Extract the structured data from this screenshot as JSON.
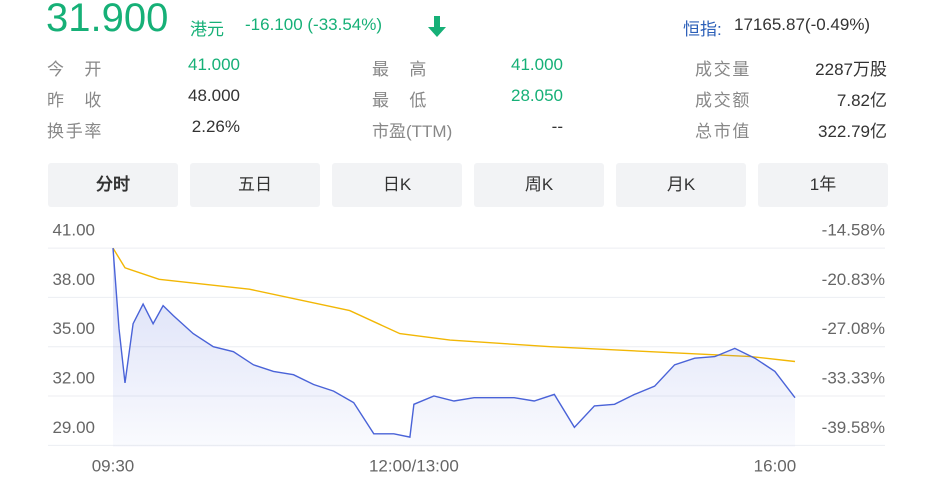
{
  "header": {
    "price": "31.900",
    "currency": "港元",
    "change": "-16.100 (-33.54%)",
    "index_label": "恒指:",
    "index_value": "17165.87(-0.49%)"
  },
  "stats": [
    [
      {
        "label": "今开",
        "value": "41.000"
      },
      {
        "label": "最高",
        "value": "41.000"
      },
      {
        "label": "成交量",
        "value": "2287万股"
      }
    ],
    [
      {
        "label": "昨收",
        "value": "48.000"
      },
      {
        "label": "最低",
        "value": "28.050"
      },
      {
        "label": "成交额",
        "value": "7.82亿"
      }
    ],
    [
      {
        "label": "换手率",
        "value": "2.26%"
      },
      {
        "label": "市盈(TTM)",
        "value": "--"
      },
      {
        "label": "总市值",
        "value": "322.79亿"
      }
    ]
  ],
  "tabs": [
    "分时",
    "五日",
    "日K",
    "周K",
    "月K",
    "1年"
  ],
  "chart_data": {
    "type": "line",
    "series": [
      {
        "color": "#4a63d8",
        "area": true,
        "x": [
          0,
          3,
          6,
          10,
          15,
          20,
          25,
          30,
          40,
          50,
          60,
          70,
          80,
          90,
          100,
          110,
          120,
          130,
          140,
          148,
          150,
          160,
          170,
          180,
          190,
          200,
          210,
          220,
          230,
          240,
          250,
          260,
          270,
          280,
          290,
          300,
          310,
          320,
          330,
          340
        ],
        "values": [
          41.0,
          36.1,
          32.8,
          36.4,
          37.6,
          36.4,
          37.5,
          36.9,
          35.8,
          35.0,
          34.7,
          33.9,
          33.5,
          33.3,
          32.7,
          32.3,
          31.6,
          29.7,
          29.7,
          29.5,
          31.5,
          32.0,
          31.7,
          31.9,
          31.9,
          31.9,
          31.7,
          32.1,
          30.1,
          31.4,
          31.5,
          32.1,
          32.6,
          33.9,
          34.3,
          34.4,
          34.9,
          34.3,
          33.5,
          31.9
        ]
      },
      {
        "color": "#f2b705",
        "area": false,
        "x": [
          0,
          6,
          23,
          68,
          118,
          143,
          168,
          218,
          268,
          318,
          340
        ],
        "values": [
          41.0,
          39.8,
          39.1,
          38.5,
          37.2,
          35.8,
          35.4,
          35.0,
          34.7,
          34.4,
          34.1
        ]
      }
    ],
    "xlim": [
      0,
      340
    ],
    "xticks": [
      {
        "value": 0,
        "label": "09:30"
      },
      {
        "value": 150,
        "label": "12:00/13:00"
      },
      {
        "value": 330,
        "label": "16:00"
      }
    ],
    "ylim": [
      28.9,
      42.1
    ],
    "yticks": [
      {
        "value": 41,
        "label": "41.00"
      },
      {
        "value": 38,
        "label": "38.00"
      },
      {
        "value": 35,
        "label": "35.00"
      },
      {
        "value": 32,
        "label": "32.00"
      },
      {
        "value": 29,
        "label": "29.00"
      }
    ],
    "y2lim": [
      -39.79,
      -12.29
    ],
    "y2ticks": [
      {
        "value": -14.58,
        "label": "-14.58%"
      },
      {
        "value": -20.83,
        "label": "-20.83%"
      },
      {
        "value": -27.08,
        "label": "-27.08%"
      },
      {
        "value": -33.33,
        "label": "-33.33%"
      },
      {
        "value": -39.58,
        "label": "-39.58%"
      }
    ],
    "grid": true
  }
}
